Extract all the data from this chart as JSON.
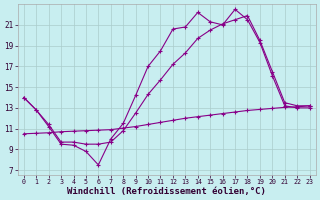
{
  "bg_color": "#c8eef0",
  "line_color": "#880088",
  "grid_color": "#aacccc",
  "xlim": [
    -0.5,
    23.5
  ],
  "ylim": [
    6.5,
    23.0
  ],
  "xlabel": "Windchill (Refroidissement éolien,°C)",
  "line1_x": [
    0,
    1,
    2,
    3,
    4,
    5,
    6,
    7,
    8,
    9,
    10,
    11,
    12,
    13,
    14,
    15,
    16,
    17,
    18,
    19,
    20,
    21,
    22,
    23
  ],
  "line1_y": [
    14.0,
    12.8,
    11.2,
    9.5,
    9.4,
    8.8,
    7.5,
    10.0,
    11.5,
    14.2,
    17.0,
    18.5,
    20.6,
    20.8,
    22.2,
    21.3,
    21.0,
    22.5,
    21.5,
    19.3,
    16.1,
    13.2,
    13.0,
    13.0
  ],
  "line2_x": [
    0,
    1,
    2,
    3,
    4,
    5,
    6,
    7,
    8,
    9,
    10,
    11,
    12,
    13,
    14,
    15,
    16,
    17,
    18,
    19,
    20,
    21,
    22,
    23
  ],
  "line2_y": [
    14.0,
    12.8,
    11.4,
    9.7,
    9.7,
    9.5,
    9.5,
    9.7,
    10.8,
    12.5,
    14.3,
    15.7,
    17.2,
    18.3,
    19.7,
    20.5,
    21.1,
    21.5,
    21.9,
    19.5,
    16.5,
    13.5,
    13.2,
    13.2
  ],
  "line3_x": [
    0,
    1,
    2,
    3,
    4,
    5,
    6,
    7,
    8,
    9,
    10,
    11,
    12,
    13,
    14,
    15,
    16,
    17,
    18,
    19,
    20,
    21,
    22,
    23
  ],
  "line3_y": [
    10.5,
    10.55,
    10.6,
    10.7,
    10.75,
    10.8,
    10.85,
    10.9,
    11.05,
    11.2,
    11.4,
    11.6,
    11.8,
    12.0,
    12.15,
    12.3,
    12.45,
    12.6,
    12.75,
    12.85,
    12.95,
    13.05,
    13.1,
    13.2
  ]
}
